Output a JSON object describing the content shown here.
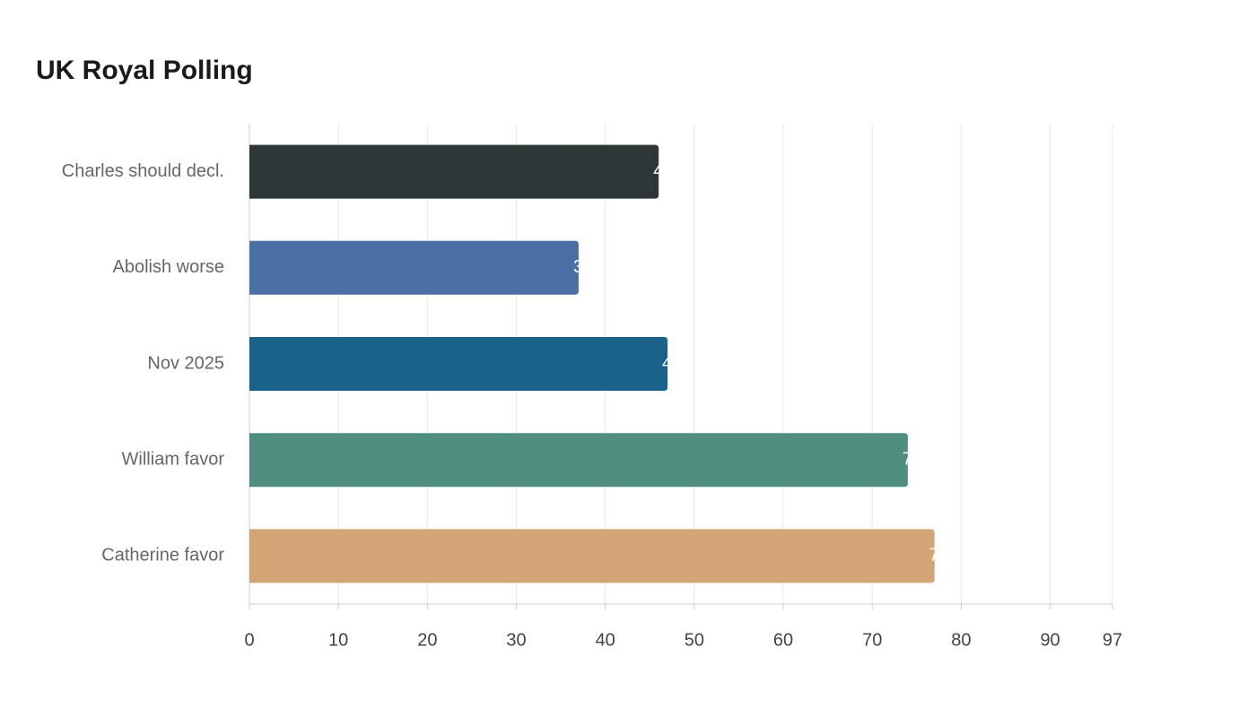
{
  "chart_data": {
    "type": "hbar",
    "title": "UK Royal Polling",
    "categories": [
      "Charles should decl.",
      "Abolish worse",
      "Nov 2025",
      "William favor",
      "Catherine favor"
    ],
    "values": [
      46,
      37,
      47,
      74,
      77
    ],
    "colors": [
      "#2e3638",
      "#4a6fa5",
      "#1a6289",
      "#4f8e7e",
      "#d4a574"
    ],
    "xlim": [
      0,
      97
    ],
    "xticks": [
      0,
      10,
      20,
      30,
      40,
      50,
      60,
      70,
      80,
      90,
      97
    ],
    "grid": true
  }
}
